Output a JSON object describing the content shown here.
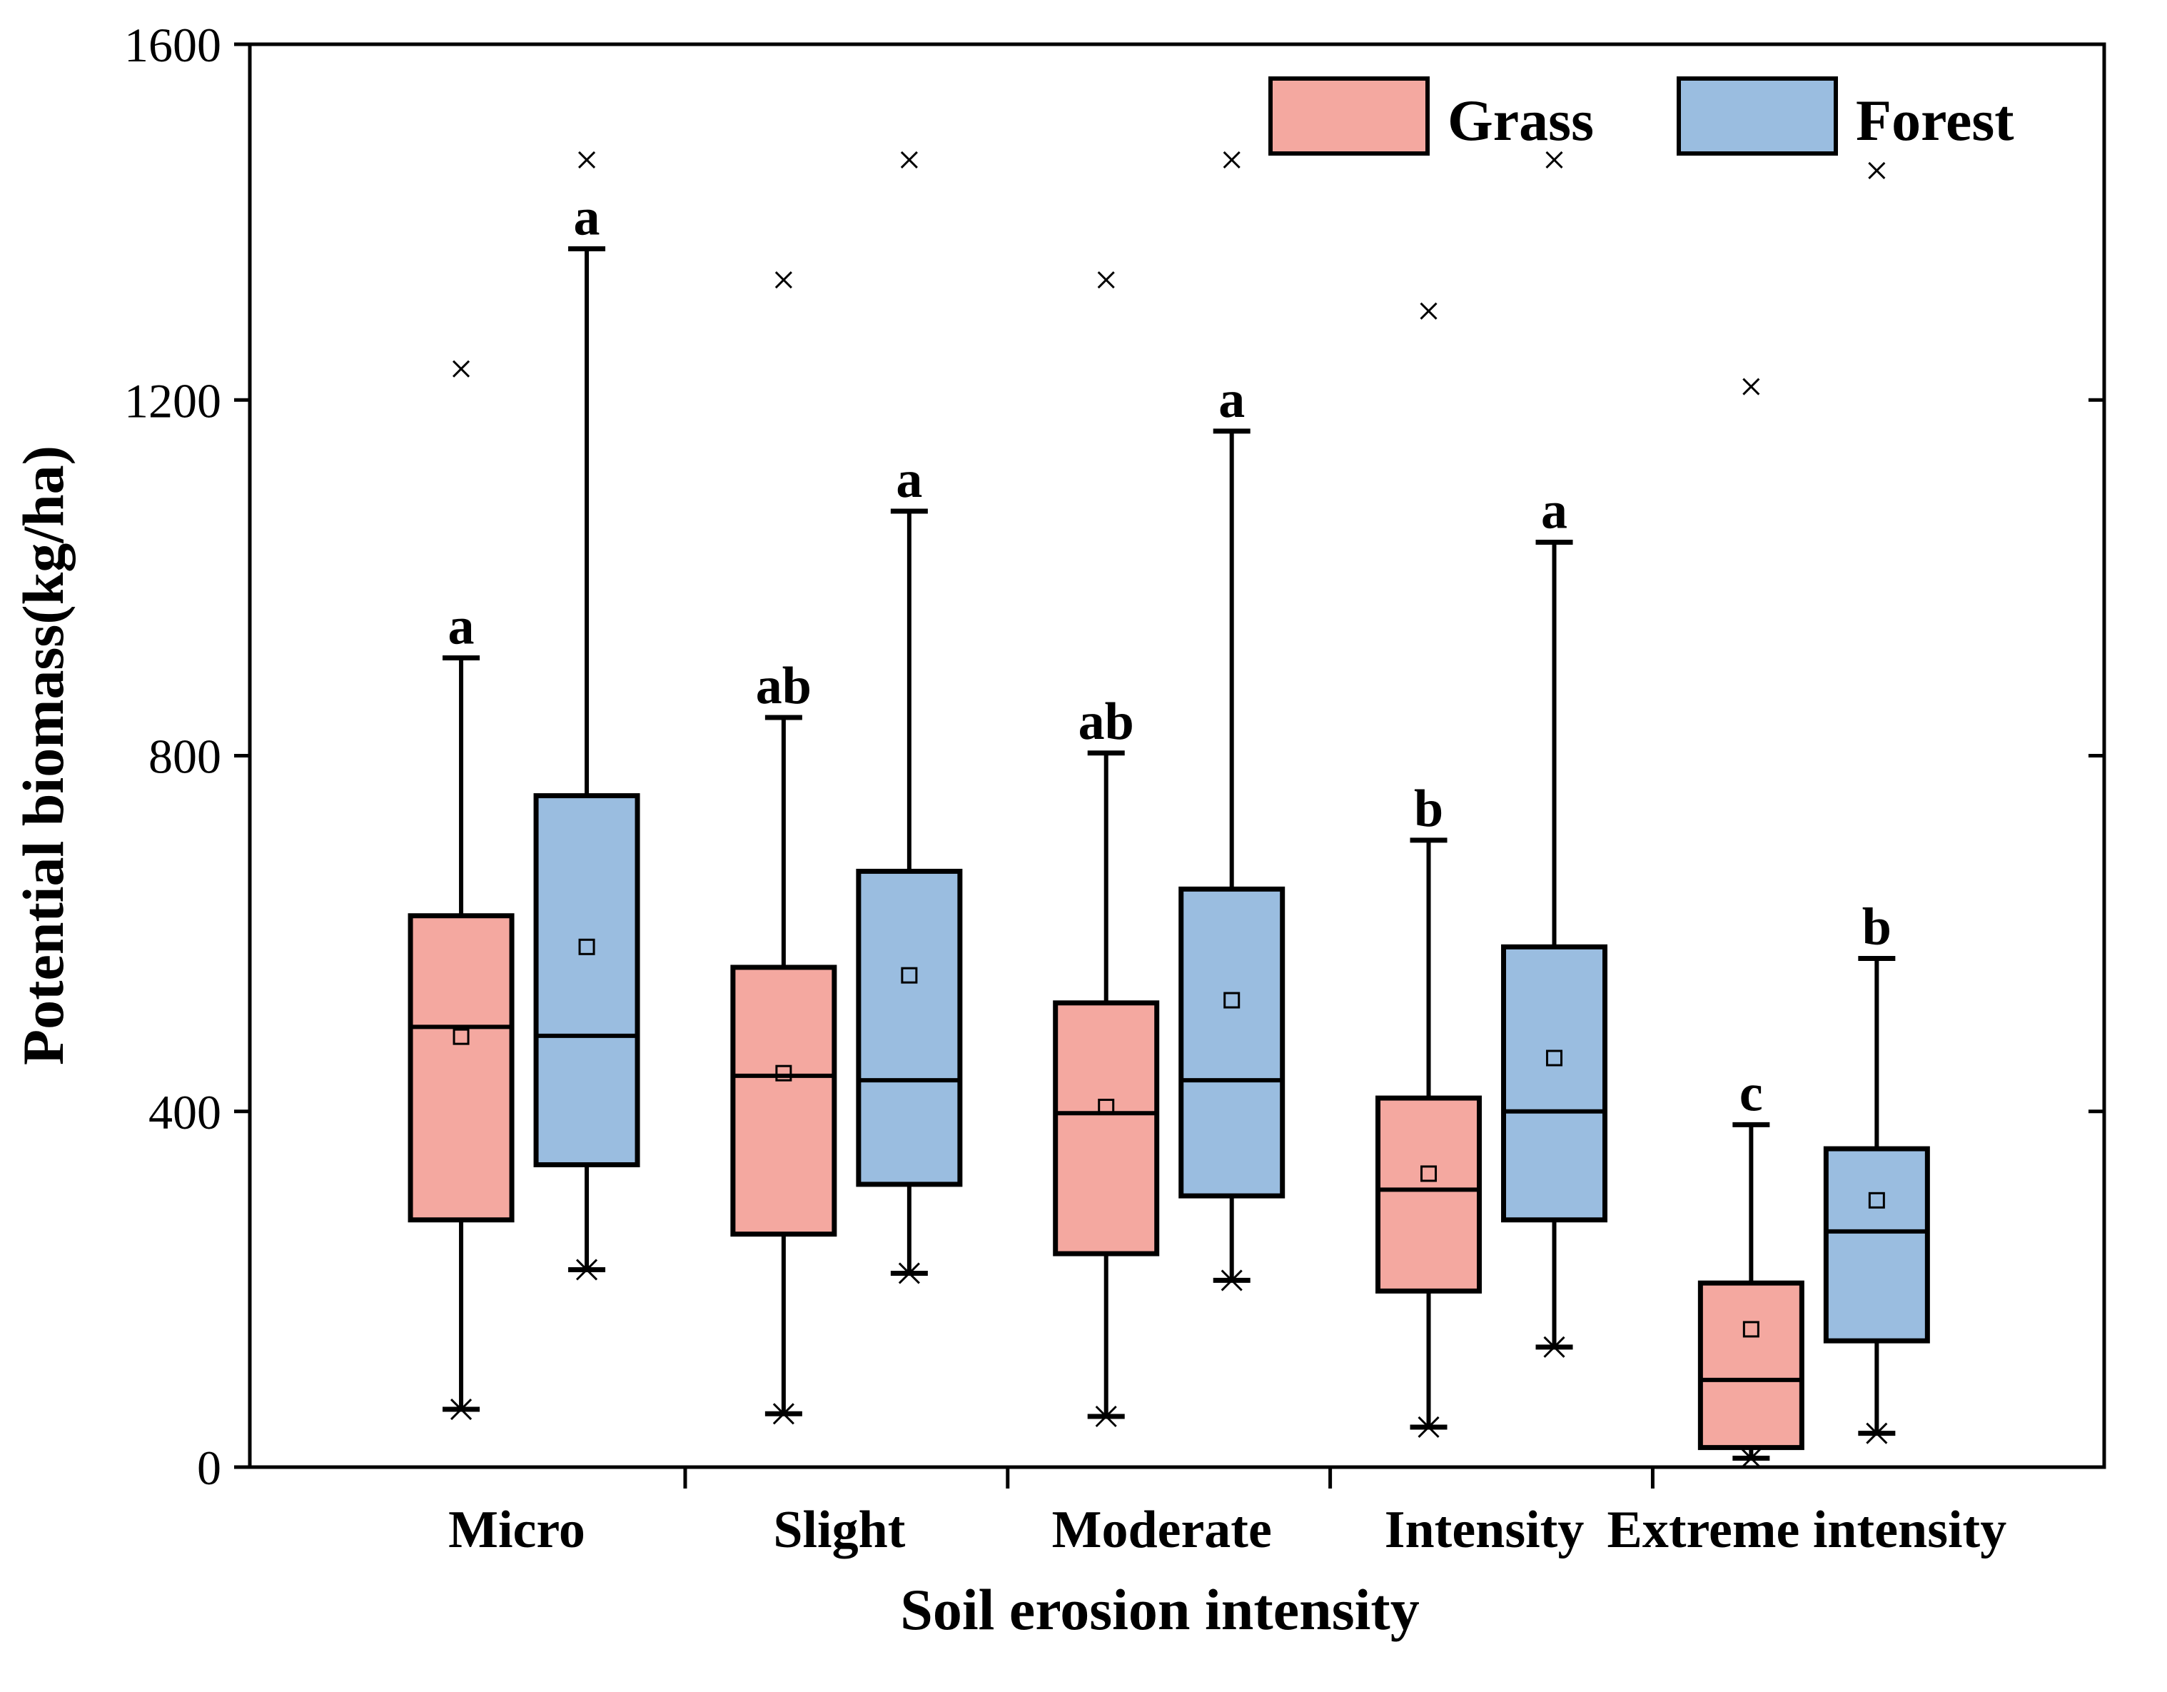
{
  "chart_data": {
    "type": "box",
    "title": "",
    "xlabel": "Soil erosion intensity",
    "ylabel": "Potential biomass(kg/ha)",
    "ylim": [
      0,
      1600
    ],
    "yticks": [
      "0",
      "400",
      "800",
      "1200",
      "1600"
    ],
    "categories": [
      "Micro",
      "Slight",
      "Moderate",
      "Intensity",
      "Extreme intensity"
    ],
    "legend": {
      "position": "top-right"
    },
    "series": [
      {
        "name": "Grass",
        "color": "#F4A8A0",
        "boxes": [
          {
            "min": 65,
            "q1": 278,
            "median": 495,
            "q3": 620,
            "max": 910,
            "mean": 484,
            "outlier": 1235,
            "letter": "a"
          },
          {
            "min": 60,
            "q1": 262,
            "median": 440,
            "q3": 562,
            "max": 843,
            "mean": 443,
            "outlier": 1335,
            "letter": "ab"
          },
          {
            "min": 57,
            "q1": 240,
            "median": 398,
            "q3": 522,
            "max": 803,
            "mean": 405,
            "outlier": 1335,
            "letter": "ab"
          },
          {
            "min": 45,
            "q1": 198,
            "median": 312,
            "q3": 415,
            "max": 705,
            "mean": 330,
            "outlier": 1300,
            "letter": "b"
          },
          {
            "min": 10,
            "q1": 22,
            "median": 98,
            "q3": 207,
            "max": 385,
            "mean": 155,
            "outlier": 1215,
            "letter": "c"
          }
        ]
      },
      {
        "name": "Forest",
        "color": "#9ABDE0",
        "boxes": [
          {
            "min": 222,
            "q1": 340,
            "median": 485,
            "q3": 755,
            "max": 1370,
            "mean": 585,
            "outlier": 1470,
            "letter": "a"
          },
          {
            "min": 218,
            "q1": 318,
            "median": 435,
            "q3": 670,
            "max": 1075,
            "mean": 553,
            "outlier": 1470,
            "letter": "a"
          },
          {
            "min": 210,
            "q1": 305,
            "median": 435,
            "q3": 650,
            "max": 1165,
            "mean": 525,
            "outlier": 1470,
            "letter": "a"
          },
          {
            "min": 135,
            "q1": 278,
            "median": 400,
            "q3": 585,
            "max": 1040,
            "mean": 460,
            "outlier": 1470,
            "letter": "a"
          },
          {
            "min": 38,
            "q1": 142,
            "median": 265,
            "q3": 358,
            "max": 572,
            "mean": 300,
            "outlier": 1458,
            "letter": "b"
          }
        ]
      }
    ]
  }
}
